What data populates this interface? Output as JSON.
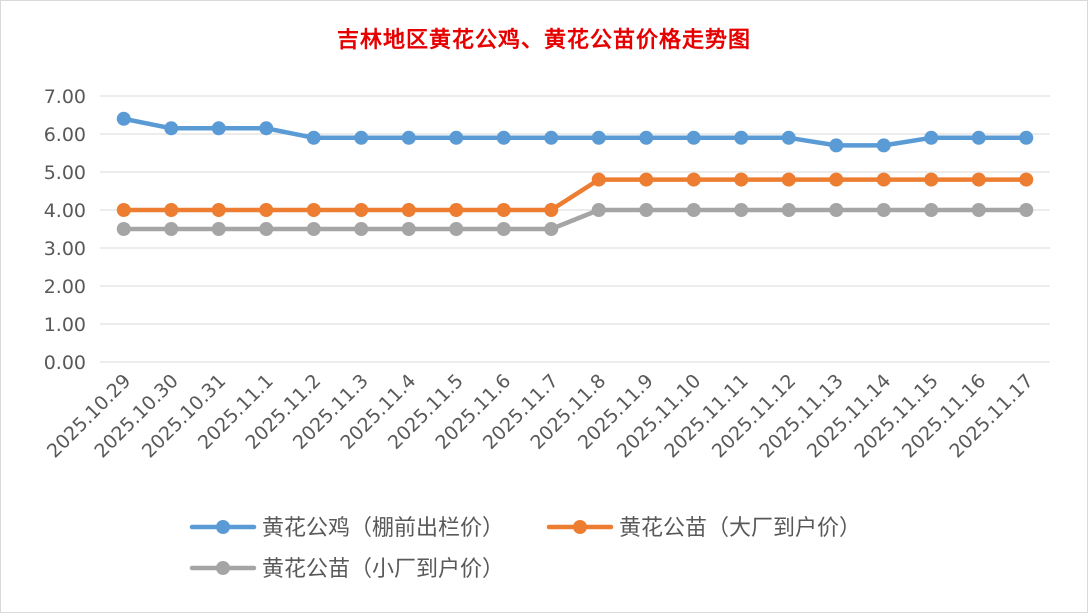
{
  "chart_data": {
    "type": "line",
    "title": "吉林地区黄花公鸡、黄花公苗价格走势图",
    "xlabel": "",
    "ylabel": "",
    "ylim": [
      0,
      7
    ],
    "yticks": [
      "0.00",
      "1.00",
      "2.00",
      "3.00",
      "4.00",
      "5.00",
      "6.00",
      "7.00"
    ],
    "grid": true,
    "legend_position": "bottom",
    "categories": [
      "2025.10.29",
      "2025.10.30",
      "2025.10.31",
      "2025.11.1",
      "2025.11.2",
      "2025.11.3",
      "2025.11.4",
      "2025.11.5",
      "2025.11.6",
      "2025.11.7",
      "2025.11.8",
      "2025.11.9",
      "2025.11.10",
      "2025.11.11",
      "2025.11.12",
      "2025.11.13",
      "2025.11.14",
      "2025.11.15",
      "2025.11.16",
      "2025.11.17"
    ],
    "series": [
      {
        "name": "黄花公鸡（棚前出栏价）",
        "color": "#5b9bd5",
        "values": [
          6.4,
          6.15,
          6.15,
          6.15,
          5.9,
          5.9,
          5.9,
          5.9,
          5.9,
          5.9,
          5.9,
          5.9,
          5.9,
          5.9,
          5.9,
          5.7,
          5.7,
          5.9,
          5.9,
          5.9
        ]
      },
      {
        "name": "黄花公苗（大厂到户价）",
        "color": "#ed7d31",
        "values": [
          4.0,
          4.0,
          4.0,
          4.0,
          4.0,
          4.0,
          4.0,
          4.0,
          4.0,
          4.0,
          4.8,
          4.8,
          4.8,
          4.8,
          4.8,
          4.8,
          4.8,
          4.8,
          4.8,
          4.8
        ]
      },
      {
        "name": "黄花公苗（小厂到户价）",
        "color": "#a5a5a5",
        "values": [
          3.5,
          3.5,
          3.5,
          3.5,
          3.5,
          3.5,
          3.5,
          3.5,
          3.5,
          3.5,
          4.0,
          4.0,
          4.0,
          4.0,
          4.0,
          4.0,
          4.0,
          4.0,
          4.0,
          4.0
        ]
      }
    ]
  },
  "colors": {
    "title": "#e60000",
    "grid": "#d9d9d9",
    "axis_text": "#595959",
    "border": "#d9d9d9"
  }
}
